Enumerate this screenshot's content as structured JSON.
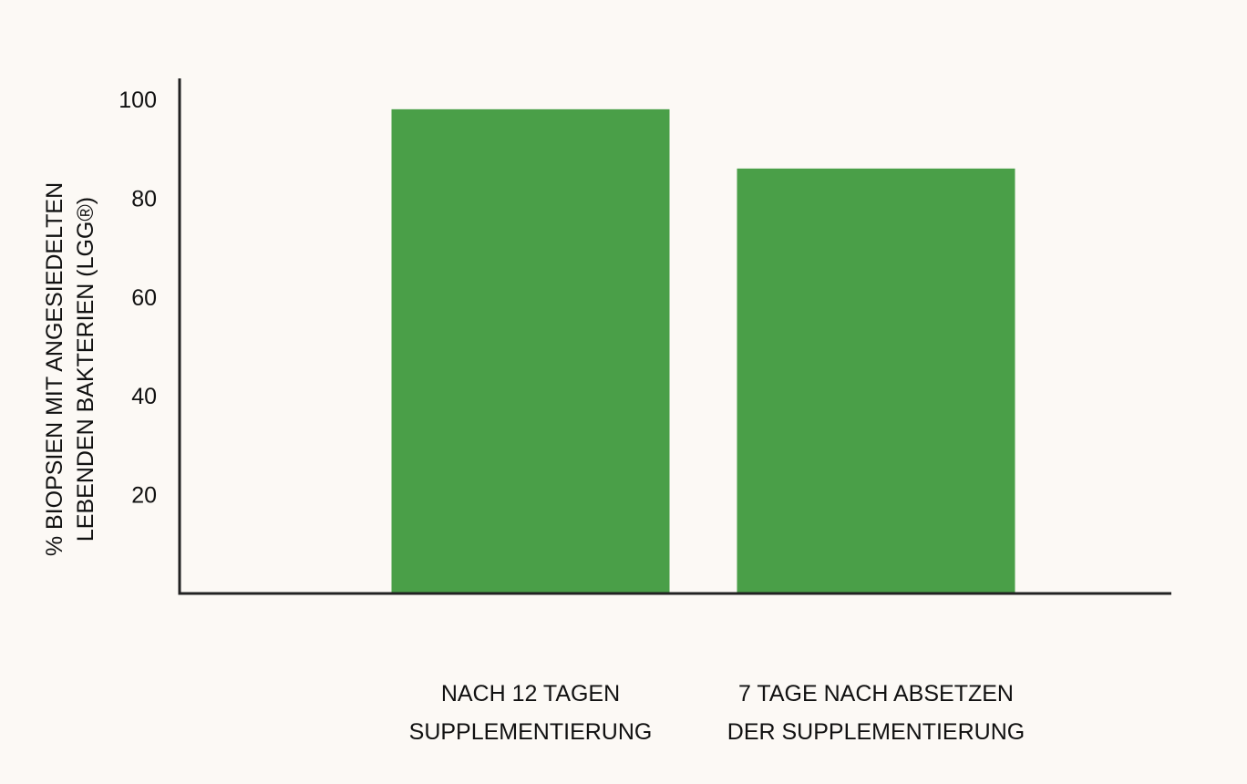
{
  "chart_data": {
    "type": "bar",
    "categories": [
      [
        "NACH 12 TAGEN",
        "SUPPLEMENTIERUNG"
      ],
      [
        "7 TAGE NACH ABSETZEN",
        "DER SUPPLEMENTIERUNG"
      ]
    ],
    "values": [
      98,
      86
    ],
    "xlabel": "",
    "ylabel": [
      "% BIOPSIEN MIT ANGESIEDELTEN",
      "LEBENDEN BAKTERIEN (LGG®)"
    ],
    "ylim": [
      0,
      104
    ],
    "yticks": [
      20,
      40,
      60,
      80,
      100
    ],
    "grid": false,
    "legend": "none",
    "bar_color": "#4a9f48",
    "axis_color": "#222222"
  }
}
